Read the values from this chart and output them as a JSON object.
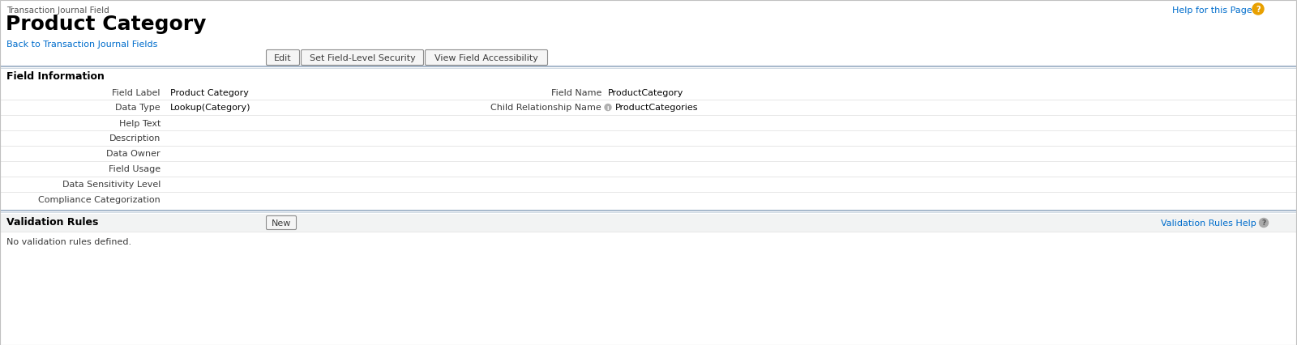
{
  "bg_color": "#ffffff",
  "breadcrumb_label": "Transaction Journal Field",
  "title": "Product Category",
  "back_link": "Back to Transaction Journal Fields",
  "help_link": "Help for this Page",
  "buttons": [
    "Edit",
    "Set Field-Level Security",
    "View Field Accessibility"
  ],
  "section_title": "Field Information",
  "left_fields": [
    {
      "label": "Field Label",
      "value": "Product Category"
    },
    {
      "label": "Data Type",
      "value": "Lookup(Category)"
    },
    {
      "label": "Help Text",
      "value": ""
    },
    {
      "label": "Description",
      "value": ""
    },
    {
      "label": "Data Owner",
      "value": ""
    },
    {
      "label": "Field Usage",
      "value": ""
    },
    {
      "label": "Data Sensitivity Level",
      "value": ""
    },
    {
      "label": "Compliance Categorization",
      "value": ""
    }
  ],
  "right_fields": [
    {
      "label": "Field Name",
      "value": "ProductCategory",
      "has_icon": false
    },
    {
      "label": "Child Relationship Name",
      "value": "ProductCategories",
      "has_icon": true
    }
  ],
  "validation_section_title": "Validation Rules",
  "validation_button": "New",
  "validation_help_link": "Validation Rules Help",
  "validation_message": "No validation rules defined.",
  "row_line_color": "#dddddd",
  "label_color": "#3c3c3c",
  "value_color": "#080808",
  "link_color": "#006dcc",
  "title_color": "#000000",
  "breadcrumb_color": "#555555",
  "button_border": "#8c8c8c",
  "button_bg": "#f5f5f5",
  "divider_dark": "#a8b9cc",
  "divider_light": "#cfd9e3",
  "section_bg": "#f2f3f3",
  "help_icon_color": "#e8a000",
  "help_icon_q_color": "#ffffff",
  "val_help_icon_color": "#aaaaaa",
  "val_help_icon_q_color": "#555555"
}
